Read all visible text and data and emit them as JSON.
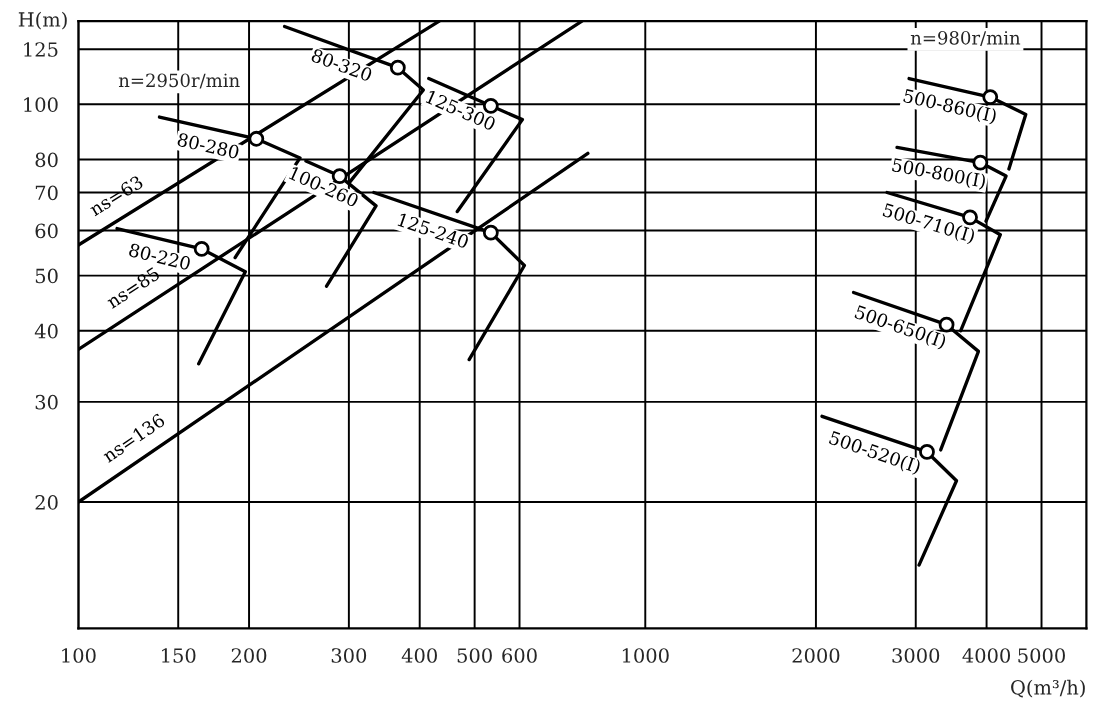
{
  "chart_data": {
    "type": "line",
    "xlabel": "Q(m³/h)",
    "ylabel": "H(m)",
    "log": "xy",
    "xlim": [
      100,
      6000
    ],
    "ylim": [
      12,
      140
    ],
    "xticks": [
      100,
      150,
      200,
      300,
      400,
      500,
      600,
      1000,
      2000,
      3000,
      4000,
      5000
    ],
    "yticks": [
      20,
      30,
      40,
      50,
      60,
      70,
      80,
      100,
      125
    ],
    "grid": true,
    "annotations": [
      "n=2950r/min",
      "n=980r/min"
    ],
    "series": [
      {
        "name": "ns=63",
        "x": [
          100,
          433
        ],
        "values": [
          56.6,
          140
        ],
        "color": "#000000"
      },
      {
        "name": "ns=85",
        "x": [
          100,
          773
        ],
        "values": [
          37.1,
          140
        ],
        "color": "#000000"
      },
      {
        "name": "ns=136",
        "x": [
          100,
          792
        ],
        "values": [
          20,
          82
        ],
        "color": "#000000"
      },
      {
        "name": "80-220",
        "x": [
          117,
          165,
          197,
          163
        ],
        "values": [
          60.5,
          55.7,
          50.8,
          35.0
        ],
        "color": "#000000"
      },
      {
        "name": "80-280",
        "x": [
          139,
          206,
          246,
          189
        ],
        "values": [
          95,
          87,
          80.5,
          53.8
        ],
        "color": "#000000"
      },
      {
        "name": "100-260",
        "x": [
          252,
          289,
          335,
          274
        ],
        "values": [
          79.5,
          74.8,
          66.3,
          47.9
        ],
        "color": "#000000"
      },
      {
        "name": "80-320",
        "x": [
          231,
          366,
          406,
          301
        ],
        "values": [
          137,
          116,
          106,
          73
        ],
        "color": "#000000"
      },
      {
        "name": "125-300",
        "x": [
          415,
          534,
          607,
          466
        ],
        "values": [
          111,
          99.4,
          94,
          64.8
        ],
        "color": "#000000"
      },
      {
        "name": "125-240",
        "x": [
          332,
          534,
          612,
          489
        ],
        "values": [
          70,
          59.5,
          52.1,
          35.6
        ],
        "color": "#000000"
      },
      {
        "name": "500-860(I)",
        "x": [
          2920,
          4060,
          4690,
          4380
        ],
        "values": [
          111,
          103,
          96,
          77
        ],
        "color": "#000000"
      },
      {
        "name": "500-800(I)",
        "x": [
          2780,
          3900,
          4330,
          3990
        ],
        "values": [
          84,
          79,
          74.8,
          62.3
        ],
        "color": "#000000"
      },
      {
        "name": "500-710(I)",
        "x": [
          2670,
          3740,
          4230,
          3600
        ],
        "values": [
          70,
          63.3,
          59,
          40
        ],
        "color": "#000000"
      },
      {
        "name": "500-650(I)",
        "x": [
          2330,
          3400,
          3870,
          3320
        ],
        "values": [
          46.7,
          41,
          36.8,
          24.7
        ],
        "color": "#000000"
      },
      {
        "name": "500-520(I)",
        "x": [
          2050,
          3140,
          3540,
          3040
        ],
        "values": [
          28.3,
          24.5,
          21.8,
          15.5
        ],
        "color": "#000000"
      },
      {
        "type": "scatter",
        "marker": "circle",
        "x": [
          165,
          206,
          289,
          366,
          534,
          534,
          4060,
          3900,
          3740,
          3400,
          3140
        ],
        "values": [
          55.7,
          87,
          74.8,
          116,
          99.4,
          59.5,
          103,
          79,
          63.3,
          41,
          24.5
        ],
        "color": "#000000"
      }
    ]
  }
}
